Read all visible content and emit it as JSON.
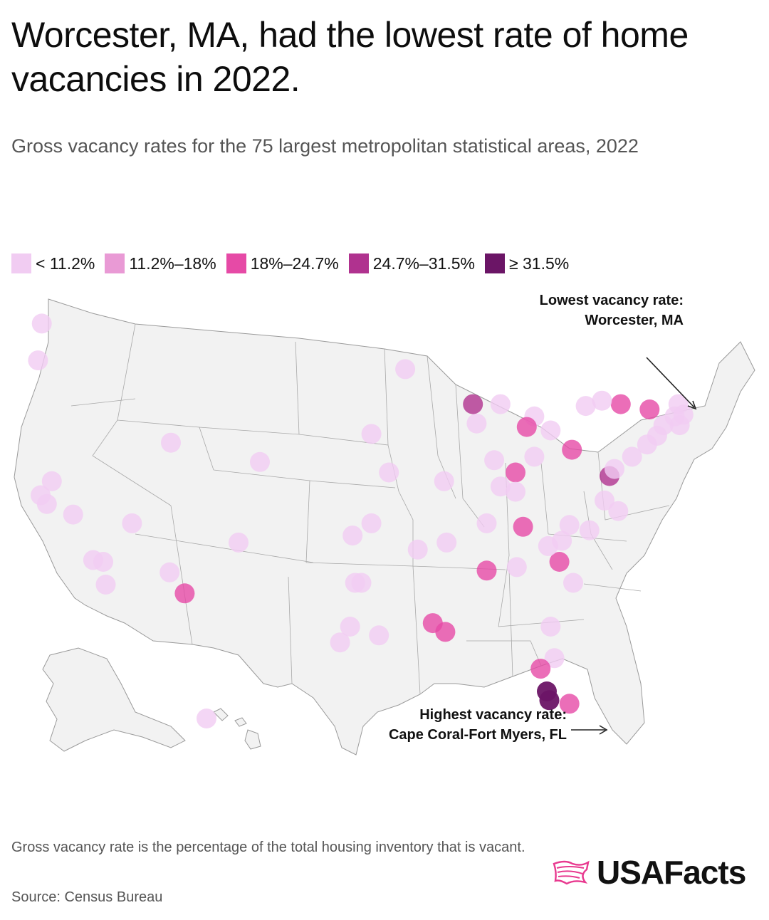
{
  "title": "Worcester, MA, had the lowest rate of home vacancies in 2022.",
  "subtitle": "Gross vacancy rates for the 75 largest metropolitan statistical areas, 2022",
  "legend": [
    {
      "label": "< 11.2%",
      "color": "#f1ccf2"
    },
    {
      "label": "11.2%–18%",
      "color": "#e99ad5"
    },
    {
      "label": "18%–24.7%",
      "color": "#e64aa6"
    },
    {
      "label": "24.7%–31.5%",
      "color": "#b0328f"
    },
    {
      "label": "≥ 31.5%",
      "color": "#6b1566"
    }
  ],
  "annotations": {
    "lowest": "Lowest vacancy rate: Worcester, MA",
    "highest": "Highest vacancy rate: Cape Coral-Fort Myers, FL"
  },
  "footnote": "Gross vacancy rate is the percentage of the total housing inventory that is vacant.",
  "source": "Source: Census Bureau",
  "logo": {
    "text": "USAFacts",
    "icon": "usafacts-flag-map-icon",
    "color": "#e8398f"
  },
  "map_data": {
    "type": "bubble-map",
    "region": "United States",
    "class_colors": [
      "#f1ccf2",
      "#e99ad5",
      "#e64aa6",
      "#b0328f",
      "#6b1566"
    ],
    "points": [
      {
        "lon": -122.3,
        "lat": 47.6,
        "cls": 0
      },
      {
        "lon": -122.6,
        "lat": 45.5,
        "cls": 0
      },
      {
        "lon": -121.5,
        "lat": 38.6,
        "cls": 0
      },
      {
        "lon": -122.4,
        "lat": 37.8,
        "cls": 0
      },
      {
        "lon": -121.9,
        "lat": 37.3,
        "cls": 0
      },
      {
        "lon": -119.8,
        "lat": 36.7,
        "cls": 0
      },
      {
        "lon": -118.2,
        "lat": 34.1,
        "cls": 0
      },
      {
        "lon": -117.4,
        "lat": 34.0,
        "cls": 0
      },
      {
        "lon": -117.2,
        "lat": 32.7,
        "cls": 0
      },
      {
        "lon": -115.1,
        "lat": 36.2,
        "cls": 0
      },
      {
        "lon": -112.0,
        "lat": 40.8,
        "cls": 0
      },
      {
        "lon": -104.9,
        "lat": 39.7,
        "cls": 0
      },
      {
        "lon": -112.1,
        "lat": 33.4,
        "cls": 0
      },
      {
        "lon": -110.9,
        "lat": 32.2,
        "cls": 2
      },
      {
        "lon": -106.6,
        "lat": 35.1,
        "cls": 0
      },
      {
        "lon": -157.9,
        "lat": 21.3,
        "cls": 0
      },
      {
        "lon": -97.3,
        "lat": 32.8,
        "cls": 0
      },
      {
        "lon": -96.8,
        "lat": 32.8,
        "cls": 0
      },
      {
        "lon": -97.7,
        "lat": 30.3,
        "cls": 0
      },
      {
        "lon": -98.5,
        "lat": 29.4,
        "cls": 0
      },
      {
        "lon": -95.4,
        "lat": 29.8,
        "cls": 0
      },
      {
        "lon": -97.5,
        "lat": 35.5,
        "cls": 0
      },
      {
        "lon": -96.0,
        "lat": 36.2,
        "cls": 0
      },
      {
        "lon": -94.6,
        "lat": 39.1,
        "cls": 0
      },
      {
        "lon": -96.0,
        "lat": 41.3,
        "cls": 0
      },
      {
        "lon": -93.3,
        "lat": 45.0,
        "cls": 0
      },
      {
        "lon": -90.2,
        "lat": 38.6,
        "cls": 0
      },
      {
        "lon": -87.6,
        "lat": 41.9,
        "cls": 0
      },
      {
        "lon": -87.9,
        "lat": 43.0,
        "cls": 3
      },
      {
        "lon": -86.2,
        "lat": 39.8,
        "cls": 0
      },
      {
        "lon": -85.7,
        "lat": 38.3,
        "cls": 0
      },
      {
        "lon": -84.5,
        "lat": 39.1,
        "cls": 2
      },
      {
        "lon": -83.0,
        "lat": 40.0,
        "cls": 0
      },
      {
        "lon": -81.7,
        "lat": 41.5,
        "cls": 0
      },
      {
        "lon": -83.0,
        "lat": 42.3,
        "cls": 0
      },
      {
        "lon": -85.7,
        "lat": 43.0,
        "cls": 0
      },
      {
        "lon": -83.6,
        "lat": 41.7,
        "cls": 2
      },
      {
        "lon": -80.0,
        "lat": 40.4,
        "cls": 2
      },
      {
        "lon": -84.5,
        "lat": 38.0,
        "cls": 0
      },
      {
        "lon": -86.8,
        "lat": 36.2,
        "cls": 0
      },
      {
        "lon": -83.9,
        "lat": 36.0,
        "cls": 2
      },
      {
        "lon": -90.0,
        "lat": 35.1,
        "cls": 0
      },
      {
        "lon": -92.3,
        "lat": 34.7,
        "cls": 0
      },
      {
        "lon": -86.8,
        "lat": 33.5,
        "cls": 2
      },
      {
        "lon": -84.4,
        "lat": 33.7,
        "cls": 0
      },
      {
        "lon": -90.1,
        "lat": 30.0,
        "cls": 2
      },
      {
        "lon": -91.1,
        "lat": 30.5,
        "cls": 2
      },
      {
        "lon": -81.4,
        "lat": 28.5,
        "cls": 0
      },
      {
        "lon": -81.7,
        "lat": 30.3,
        "cls": 0
      },
      {
        "lon": -82.5,
        "lat": 27.9,
        "cls": 2
      },
      {
        "lon": -82.0,
        "lat": 26.6,
        "cls": 4
      },
      {
        "lon": -81.8,
        "lat": 26.1,
        "cls": 4
      },
      {
        "lon": -80.2,
        "lat": 25.9,
        "cls": 2
      },
      {
        "lon": -80.8,
        "lat": 35.2,
        "cls": 0
      },
      {
        "lon": -80.2,
        "lat": 36.1,
        "cls": 0
      },
      {
        "lon": -78.6,
        "lat": 35.8,
        "cls": 0
      },
      {
        "lon": -79.9,
        "lat": 32.8,
        "cls": 0
      },
      {
        "lon": -81.0,
        "lat": 34.0,
        "cls": 2
      },
      {
        "lon": -81.9,
        "lat": 34.9,
        "cls": 0
      },
      {
        "lon": -77.4,
        "lat": 37.5,
        "cls": 0
      },
      {
        "lon": -76.3,
        "lat": 36.9,
        "cls": 0
      },
      {
        "lon": -77.0,
        "lat": 38.9,
        "cls": 3
      },
      {
        "lon": -76.6,
        "lat": 39.3,
        "cls": 0
      },
      {
        "lon": -75.2,
        "lat": 40.0,
        "cls": 0
      },
      {
        "lon": -74.0,
        "lat": 40.7,
        "cls": 0
      },
      {
        "lon": -73.2,
        "lat": 41.2,
        "cls": 0
      },
      {
        "lon": -72.7,
        "lat": 41.8,
        "cls": 0
      },
      {
        "lon": -71.8,
        "lat": 42.3,
        "cls": 0
      },
      {
        "lon": -71.1,
        "lat": 42.4,
        "cls": 0
      },
      {
        "lon": -71.4,
        "lat": 41.8,
        "cls": 0
      },
      {
        "lon": -73.8,
        "lat": 42.7,
        "cls": 2
      },
      {
        "lon": -76.1,
        "lat": 43.0,
        "cls": 2
      },
      {
        "lon": -77.6,
        "lat": 43.2,
        "cls": 0
      },
      {
        "lon": -78.9,
        "lat": 42.9,
        "cls": 0
      },
      {
        "lon": -71.5,
        "lat": 43.0,
        "cls": 0
      }
    ]
  }
}
